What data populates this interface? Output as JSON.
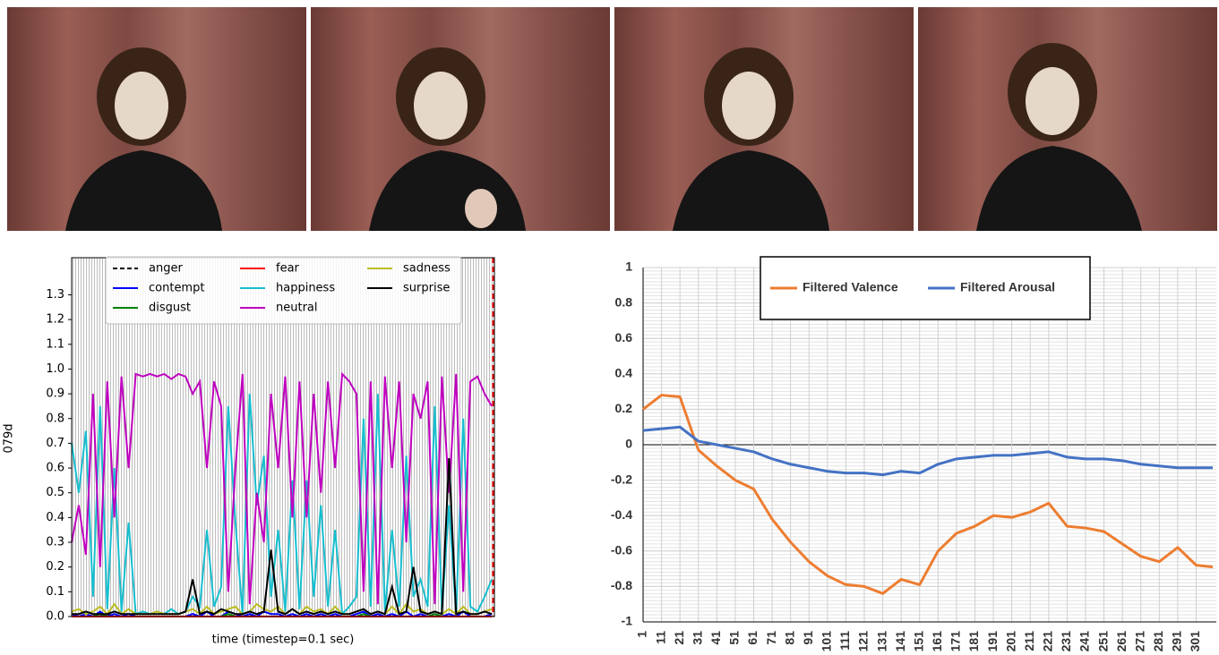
{
  "chart_data": [
    {
      "type": "line",
      "ylabel": "079d",
      "xlabel": "time (timestep=0.1 sec)",
      "ylim": [
        0,
        1.45
      ],
      "yticks": [
        {
          "value": 0,
          "label": "0.0"
        },
        0.1,
        0.2,
        0.3,
        0.4,
        0.5,
        0.6,
        0.7,
        0.8,
        0.9,
        {
          "value": 1,
          "label": "1.0"
        },
        1.1,
        1.2,
        1.3
      ],
      "legend": "upper center",
      "series": [
        {
          "name": "anger",
          "color": "#000000",
          "dash": true,
          "values": [
            0,
            0,
            0,
            0,
            0,
            0.01,
            0,
            0,
            0,
            0,
            0,
            0,
            0,
            0,
            0,
            0,
            0,
            0.01,
            0,
            0,
            0,
            0,
            0,
            0,
            0,
            0.01,
            0,
            0,
            0,
            0,
            0,
            0,
            0,
            0,
            0,
            0,
            0,
            0,
            0,
            0,
            0,
            0,
            0,
            0.01,
            0,
            0,
            0,
            0,
            0,
            0,
            0,
            0,
            0,
            0,
            0,
            0,
            0,
            0,
            0,
            0
          ]
        },
        {
          "name": "contempt",
          "color": "#0000ff",
          "values": [
            0.01,
            0,
            0.01,
            0,
            0.02,
            0,
            0.01,
            0,
            0.01,
            0,
            0,
            0,
            0,
            0,
            0,
            0,
            0,
            0.01,
            0,
            0.02,
            0,
            0,
            0.02,
            0.01,
            0,
            0.01,
            0,
            0.02,
            0.01,
            0.01,
            0,
            0.01,
            0,
            0.01,
            0,
            0.01,
            0,
            0.01,
            0,
            0,
            0.01,
            0.02,
            0,
            0.01,
            0,
            0.01,
            0,
            0.02,
            0,
            0.01,
            0,
            0.01,
            0,
            0.01,
            0,
            0.02,
            0,
            0,
            0,
            0.01
          ]
        },
        {
          "name": "disgust",
          "color": "#008000",
          "values": [
            0,
            0,
            0,
            0,
            0.01,
            0,
            0,
            0,
            0,
            0,
            0,
            0,
            0,
            0,
            0,
            0,
            0,
            0,
            0,
            0,
            0,
            0,
            0.01,
            0,
            0,
            0,
            0,
            0,
            0,
            0,
            0,
            0,
            0,
            0,
            0,
            0,
            0,
            0,
            0,
            0,
            0,
            0.01,
            0,
            0,
            0,
            0,
            0,
            0,
            0,
            0,
            0,
            0.01,
            0,
            0,
            0,
            0,
            0,
            0,
            0,
            0
          ]
        },
        {
          "name": "fear",
          "color": "#ff0000",
          "values": [
            0,
            0,
            0,
            0,
            0,
            0,
            0,
            0,
            0,
            0,
            0,
            0,
            0,
            0,
            0,
            0,
            0,
            0,
            0,
            0,
            0,
            0,
            0,
            0,
            0,
            0,
            0,
            0,
            0,
            0,
            0,
            0,
            0,
            0,
            0,
            0,
            0,
            0,
            0,
            0,
            0,
            0,
            0,
            0,
            0,
            0,
            0,
            0,
            0,
            0,
            0,
            0,
            0,
            0,
            0,
            0,
            0,
            0,
            0,
            0
          ]
        },
        {
          "name": "happiness",
          "color": "#17becf",
          "values": [
            0.7,
            0.5,
            0.75,
            0.08,
            0.85,
            0.03,
            0.6,
            0.02,
            0.38,
            0.01,
            0.02,
            0.01,
            0.02,
            0.01,
            0.03,
            0.01,
            0.02,
            0.08,
            0.04,
            0.35,
            0.04,
            0.12,
            0.85,
            0.38,
            0.01,
            0.9,
            0.45,
            0.65,
            0.08,
            0.35,
            0.02,
            0.55,
            0.03,
            0.55,
            0.08,
            0.45,
            0.04,
            0.35,
            0.01,
            0.04,
            0.08,
            0.8,
            0.04,
            0.9,
            0.02,
            0.35,
            0.04,
            0.65,
            0.08,
            0.15,
            0.04,
            0.85,
            0.02,
            0.45,
            0.01,
            0.8,
            0.04,
            0.02,
            0.08,
            0.15
          ]
        },
        {
          "name": "neutral",
          "color": "#bf00bf",
          "values": [
            0.3,
            0.45,
            0.25,
            0.9,
            0.2,
            0.95,
            0.4,
            0.97,
            0.6,
            0.98,
            0.97,
            0.98,
            0.97,
            0.98,
            0.96,
            0.98,
            0.97,
            0.9,
            0.95,
            0.6,
            0.95,
            0.85,
            0.1,
            0.6,
            0.98,
            0.05,
            0.5,
            0.3,
            0.9,
            0.6,
            0.97,
            0.4,
            0.95,
            0.4,
            0.9,
            0.5,
            0.95,
            0.6,
            0.98,
            0.95,
            0.9,
            0.1,
            0.95,
            0.05,
            0.97,
            0.6,
            0.95,
            0.3,
            0.9,
            0.8,
            0.95,
            0.05,
            0.97,
            0.5,
            0.98,
            0.1,
            0.95,
            0.97,
            0.9,
            0.85
          ]
        },
        {
          "name": "sadness",
          "color": "#bcbd22",
          "values": [
            0.02,
            0.03,
            0.01,
            0.02,
            0.04,
            0.01,
            0.05,
            0.01,
            0.03,
            0.01,
            0.01,
            0.01,
            0.02,
            0.01,
            0.01,
            0.01,
            0.02,
            0.03,
            0.01,
            0.04,
            0.01,
            0.02,
            0.03,
            0.04,
            0.01,
            0.02,
            0.05,
            0.03,
            0.02,
            0.04,
            0.01,
            0.03,
            0.01,
            0.04,
            0.02,
            0.03,
            0.01,
            0.04,
            0.01,
            0.01,
            0.02,
            0.03,
            0.01,
            0.02,
            0.01,
            0.04,
            0.01,
            0.05,
            0.02,
            0.03,
            0.01,
            0.02,
            0.01,
            0.03,
            0.01,
            0.04,
            0.01,
            0.01,
            0.02,
            0.03
          ]
        },
        {
          "name": "surprise",
          "color": "#000000",
          "values": [
            0.01,
            0.01,
            0.02,
            0.01,
            0.01,
            0.01,
            0.02,
            0.01,
            0.01,
            0.01,
            0.01,
            0.01,
            0.01,
            0.01,
            0.01,
            0.01,
            0.02,
            0.15,
            0.01,
            0.02,
            0.01,
            0.03,
            0.02,
            0.01,
            0.01,
            0.02,
            0.01,
            0.02,
            0.27,
            0.02,
            0.01,
            0.03,
            0.01,
            0.02,
            0.01,
            0.02,
            0.01,
            0.02,
            0.01,
            0.01,
            0.02,
            0.03,
            0.01,
            0.02,
            0.01,
            0.12,
            0.01,
            0.02,
            0.2,
            0.02,
            0.01,
            0.02,
            0.01,
            0.64,
            0.01,
            0.02,
            0.01,
            0.01,
            0.02,
            0.01
          ]
        }
      ]
    },
    {
      "type": "line",
      "x": [
        1,
        11,
        21,
        31,
        41,
        51,
        61,
        71,
        81,
        91,
        101,
        111,
        121,
        131,
        141,
        151,
        161,
        171,
        181,
        191,
        201,
        211,
        221,
        231,
        241,
        251,
        261,
        271,
        281,
        291,
        301,
        310
      ],
      "xlim": [
        1,
        310
      ],
      "xticks": [
        1,
        11,
        21,
        31,
        41,
        51,
        61,
        71,
        81,
        91,
        101,
        111,
        121,
        131,
        141,
        151,
        161,
        171,
        181,
        191,
        201,
        211,
        221,
        231,
        241,
        251,
        261,
        271,
        281,
        291,
        301
      ],
      "ylim": [
        -1,
        1
      ],
      "yticks": [
        -1,
        -0.8,
        -0.6,
        -0.4,
        -0.2,
        0,
        0.2,
        0.4,
        0.6,
        0.8,
        1
      ],
      "grid": true,
      "legend": "upper center",
      "series": [
        {
          "name": "Filtered Valence",
          "color": "#ed7d31",
          "values": [
            0.2,
            0.28,
            0.27,
            -0.03,
            -0.12,
            -0.2,
            -0.25,
            -0.42,
            -0.55,
            -0.66,
            -0.74,
            -0.79,
            -0.8,
            -0.84,
            -0.76,
            -0.79,
            -0.6,
            -0.5,
            -0.46,
            -0.4,
            -0.41,
            -0.38,
            -0.33,
            -0.46,
            -0.47,
            -0.49,
            -0.56,
            -0.63,
            -0.66,
            -0.58,
            -0.68,
            -0.69
          ]
        },
        {
          "name": "Filtered Arousal",
          "color": "#4472c4",
          "values": [
            0.08,
            0.09,
            0.1,
            0.02,
            0,
            -0.02,
            -0.04,
            -0.08,
            -0.11,
            -0.13,
            -0.15,
            -0.16,
            -0.16,
            -0.17,
            -0.15,
            -0.16,
            -0.11,
            -0.08,
            -0.07,
            -0.06,
            -0.06,
            -0.05,
            -0.04,
            -0.07,
            -0.08,
            -0.08,
            -0.09,
            -0.11,
            -0.12,
            -0.13,
            -0.13,
            -0.13
          ]
        }
      ]
    }
  ]
}
